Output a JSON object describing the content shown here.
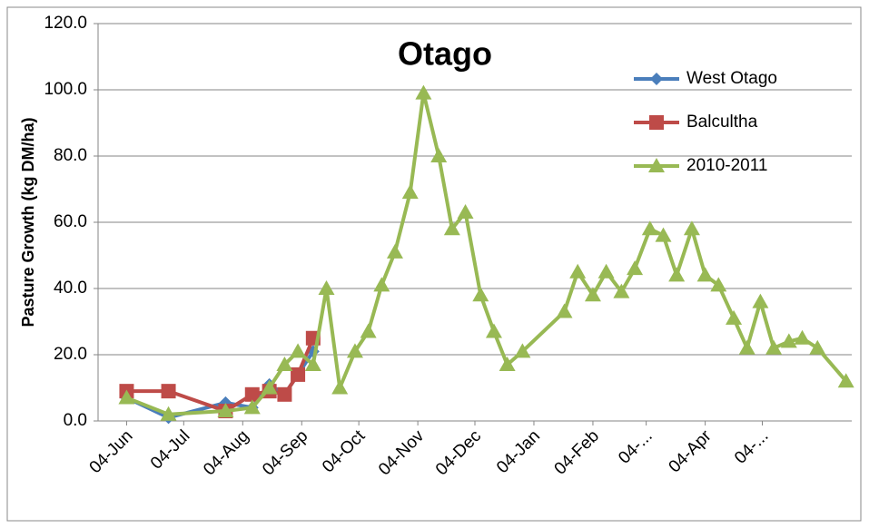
{
  "chart_data": {
    "type": "line",
    "title": "Otago",
    "y_label": "Pasture Growth (kg DM/ha)",
    "xlim": [
      -15,
      381
    ],
    "xticks": [
      {
        "value": 0,
        "label": "04-Jun"
      },
      {
        "value": 30,
        "label": "04-Jul"
      },
      {
        "value": 61,
        "label": "04-Aug"
      },
      {
        "value": 92,
        "label": "04-Sep"
      },
      {
        "value": 122,
        "label": "04-Oct"
      },
      {
        "value": 153,
        "label": "04-Nov"
      },
      {
        "value": 183,
        "label": "04-Dec"
      },
      {
        "value": 214,
        "label": "04-Jan"
      },
      {
        "value": 245,
        "label": "04-Feb"
      },
      {
        "value": 273,
        "label": "04-..."
      },
      {
        "value": 304,
        "label": "04-Apr"
      },
      {
        "value": 334,
        "label": "04-..."
      }
    ],
    "ylim": [
      0,
      120
    ],
    "yticks": [
      {
        "value": 0,
        "label": "0.0"
      },
      {
        "value": 20,
        "label": "20.0"
      },
      {
        "value": 40,
        "label": "40.0"
      },
      {
        "value": 60,
        "label": "60.0"
      },
      {
        "value": 80,
        "label": "80.0"
      },
      {
        "value": 100,
        "label": "100.0"
      },
      {
        "value": 120,
        "label": "120.0"
      }
    ],
    "grid": true,
    "legend": "top-right",
    "series": [
      {
        "name": "West Otago",
        "color": "#4a7ebb",
        "marker": "diamond",
        "x": [
          0,
          22,
          52,
          66,
          75,
          83,
          90,
          98
        ],
        "values": [
          7,
          1,
          5.5,
          4,
          11,
          8,
          14,
          21
        ]
      },
      {
        "name": "Balcultha",
        "color": "#be4b48",
        "marker": "square",
        "x": [
          0,
          22,
          52,
          66,
          75,
          83,
          90,
          98
        ],
        "values": [
          9,
          9,
          3,
          8,
          9,
          8,
          14,
          25
        ]
      },
      {
        "name": "2010-2011",
        "color": "#98b954",
        "marker": "triangle",
        "x": [
          0,
          22,
          52,
          66,
          75,
          83,
          90,
          98,
          105,
          112,
          120,
          127,
          134,
          141,
          149,
          156,
          164,
          171,
          178,
          186,
          193,
          200,
          208,
          230,
          237,
          245,
          252,
          260,
          267,
          275,
          282,
          289,
          297,
          304,
          311,
          319,
          326,
          333,
          340,
          348,
          355,
          363,
          378
        ],
        "values": [
          7,
          2,
          3,
          4,
          10,
          17,
          21,
          17,
          40,
          10,
          21,
          27,
          41,
          51,
          69,
          99,
          80,
          58,
          63,
          38,
          27,
          17,
          21,
          33,
          45,
          38,
          45,
          39,
          46,
          58,
          56,
          44,
          58,
          44,
          41,
          31,
          22,
          36,
          22,
          24,
          25,
          22,
          12
        ]
      }
    ]
  }
}
